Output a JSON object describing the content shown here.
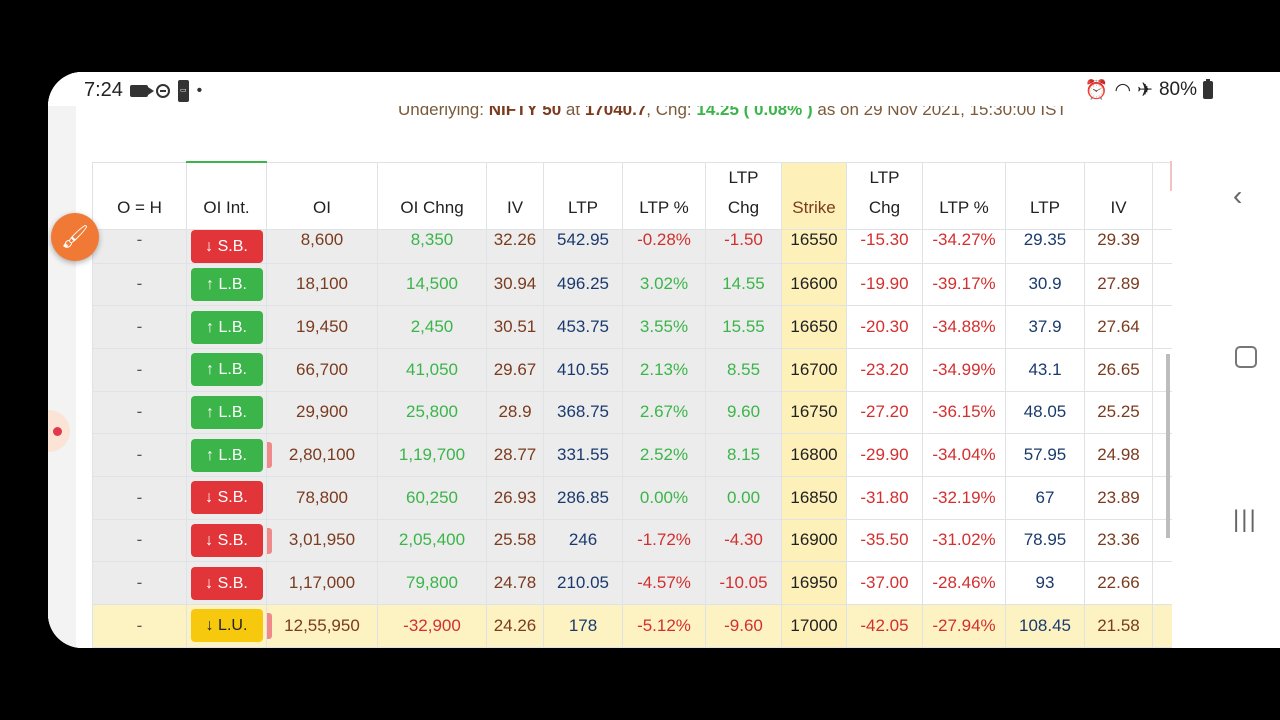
{
  "status": {
    "time": "7:24",
    "battery": "80%"
  },
  "underlying": {
    "label": "Underlying:",
    "index": "NIFTY 50",
    "at": "at",
    "price": "17040.7",
    "chg_label": ", Chg:",
    "chg": "14.25 ( 0.08% )",
    "as_on": "as on 29 Nov 2021, 15:30:00 IST"
  },
  "headers": {
    "oh": "O = H",
    "oi_int": "OI Int.",
    "oi": "OI",
    "oi_chng": "OI Chng",
    "iv": "IV",
    "ltp": "LTP",
    "ltp_pct": "LTP %",
    "ltp_chg_1": "LTP",
    "ltp_chg_2": "Chg",
    "strike": "Strike",
    "p_ltp_chg_1": "LTP",
    "p_ltp_chg_2": "Chg",
    "p_ltp_pct": "LTP %",
    "p_ltp": "LTP",
    "p_iv": "IV"
  },
  "rows": [
    {
      "oh": "-",
      "oi_int": "↓ S.B.",
      "type": "sb",
      "oi": "8,600",
      "oi_chng": "8,350",
      "iv": "32.26",
      "ltp": "542.95",
      "ltp_pct": "-0.28%",
      "ltp_chg": "-1.50",
      "strike": "16550",
      "p_ltp_chg": "-15.30",
      "p_ltp_pct": "-34.27%",
      "p_ltp": "29.35",
      "p_iv": "29.39"
    },
    {
      "oh": "-",
      "oi_int": "↑ L.B.",
      "type": "lb",
      "oi": "18,100",
      "oi_chng": "14,500",
      "iv": "30.94",
      "ltp": "496.25",
      "ltp_pct": "3.02%",
      "ltp_chg": "14.55",
      "strike": "16600",
      "p_ltp_chg": "-19.90",
      "p_ltp_pct": "-39.17%",
      "p_ltp": "30.9",
      "p_iv": "27.89"
    },
    {
      "oh": "-",
      "oi_int": "↑ L.B.",
      "type": "lb",
      "oi": "19,450",
      "oi_chng": "2,450",
      "iv": "30.51",
      "ltp": "453.75",
      "ltp_pct": "3.55%",
      "ltp_chg": "15.55",
      "strike": "16650",
      "p_ltp_chg": "-20.30",
      "p_ltp_pct": "-34.88%",
      "p_ltp": "37.9",
      "p_iv": "27.64"
    },
    {
      "oh": "-",
      "oi_int": "↑ L.B.",
      "type": "lb",
      "oi": "66,700",
      "oi_chng": "41,050",
      "iv": "29.67",
      "ltp": "410.55",
      "ltp_pct": "2.13%",
      "ltp_chg": "8.55",
      "strike": "16700",
      "p_ltp_chg": "-23.20",
      "p_ltp_pct": "-34.99%",
      "p_ltp": "43.1",
      "p_iv": "26.65"
    },
    {
      "oh": "-",
      "oi_int": "↑ L.B.",
      "type": "lb",
      "oi": "29,900",
      "oi_chng": "25,800",
      "iv": "28.9",
      "ltp": "368.75",
      "ltp_pct": "2.67%",
      "ltp_chg": "9.60",
      "strike": "16750",
      "p_ltp_chg": "-27.20",
      "p_ltp_pct": "-36.15%",
      "p_ltp": "48.05",
      "p_iv": "25.25"
    },
    {
      "oh": "-",
      "oi_int": "↑ L.B.",
      "type": "lb",
      "oi": "2,80,100",
      "oi_chng": "1,19,700",
      "iv": "28.77",
      "ltp": "331.55",
      "ltp_pct": "2.52%",
      "ltp_chg": "8.15",
      "strike": "16800",
      "p_ltp_chg": "-29.90",
      "p_ltp_pct": "-34.04%",
      "p_ltp": "57.95",
      "p_iv": "24.98"
    },
    {
      "oh": "-",
      "oi_int": "↓ S.B.",
      "type": "sb",
      "oi": "78,800",
      "oi_chng": "60,250",
      "iv": "26.93",
      "ltp": "286.85",
      "ltp_pct": "0.00%",
      "ltp_chg": "0.00",
      "strike": "16850",
      "p_ltp_chg": "-31.80",
      "p_ltp_pct": "-32.19%",
      "p_ltp": "67",
      "p_iv": "23.89"
    },
    {
      "oh": "-",
      "oi_int": "↓ S.B.",
      "type": "sb",
      "oi": "3,01,950",
      "oi_chng": "2,05,400",
      "iv": "25.58",
      "ltp": "246",
      "ltp_pct": "-1.72%",
      "ltp_chg": "-4.30",
      "strike": "16900",
      "p_ltp_chg": "-35.50",
      "p_ltp_pct": "-31.02%",
      "p_ltp": "78.95",
      "p_iv": "23.36"
    },
    {
      "oh": "-",
      "oi_int": "↓ S.B.",
      "type": "sb",
      "oi": "1,17,000",
      "oi_chng": "79,800",
      "iv": "24.78",
      "ltp": "210.05",
      "ltp_pct": "-4.57%",
      "ltp_chg": "-10.05",
      "strike": "16950",
      "p_ltp_chg": "-37.00",
      "p_ltp_pct": "-28.46%",
      "p_ltp": "93",
      "p_iv": "22.66"
    },
    {
      "oh": "-",
      "oi_int": "↓ L.U.",
      "type": "lu",
      "oi": "12,55,950",
      "oi_chng": "-32,900",
      "iv": "24.26",
      "ltp": "178",
      "ltp_pct": "-5.12%",
      "ltp_chg": "-9.60",
      "strike": "17000",
      "p_ltp_chg": "-42.05",
      "p_ltp_pct": "-27.94%",
      "p_ltp": "108.45",
      "p_iv": "21.58"
    }
  ],
  "colors": {
    "green": "#3bb54a",
    "red": "#d32f2f",
    "strike_bg": "#fdf0b8"
  }
}
